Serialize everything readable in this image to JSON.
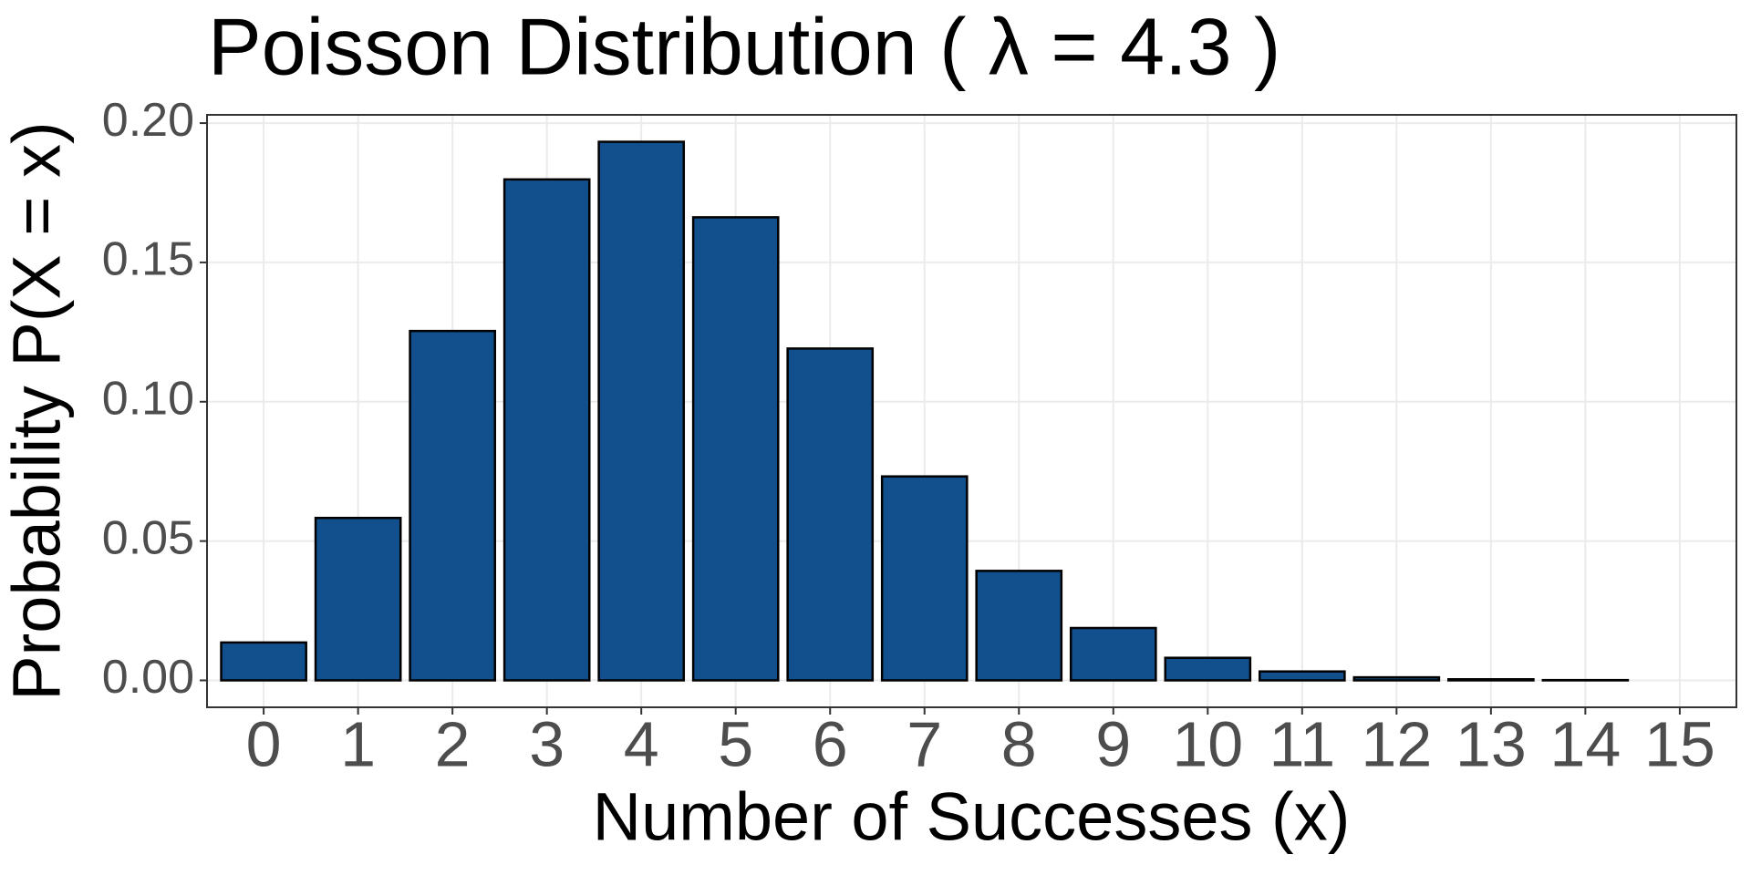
{
  "chart_data": {
    "type": "bar",
    "title": "Poisson Distribution ( λ = 4.3 )",
    "x_label": "Number of Successes (x)",
    "y_label": "Probability P(X = x)",
    "categories": [
      "0",
      "1",
      "2",
      "3",
      "4",
      "5",
      "6",
      "7",
      "8",
      "9",
      "10",
      "11",
      "12",
      "13",
      "14",
      "15"
    ],
    "values": [
      0.0136,
      0.0583,
      0.1254,
      0.1798,
      0.1933,
      0.1662,
      0.1191,
      0.0732,
      0.0393,
      0.0188,
      0.0081,
      0.0032,
      0.0011,
      0.0004,
      0.0001,
      0.0
    ],
    "color": "#11508c",
    "ylim": [
      -0.00966,
      0.20297
    ],
    "yticks": [
      {
        "value": 0,
        "label": "0.00"
      },
      {
        "value": 0.05,
        "label": "0.05"
      },
      {
        "value": 0.1,
        "label": "0.10"
      },
      {
        "value": 0.15,
        "label": "0.15"
      },
      {
        "value": 0.2,
        "label": "0.20"
      }
    ],
    "grid": true
  }
}
